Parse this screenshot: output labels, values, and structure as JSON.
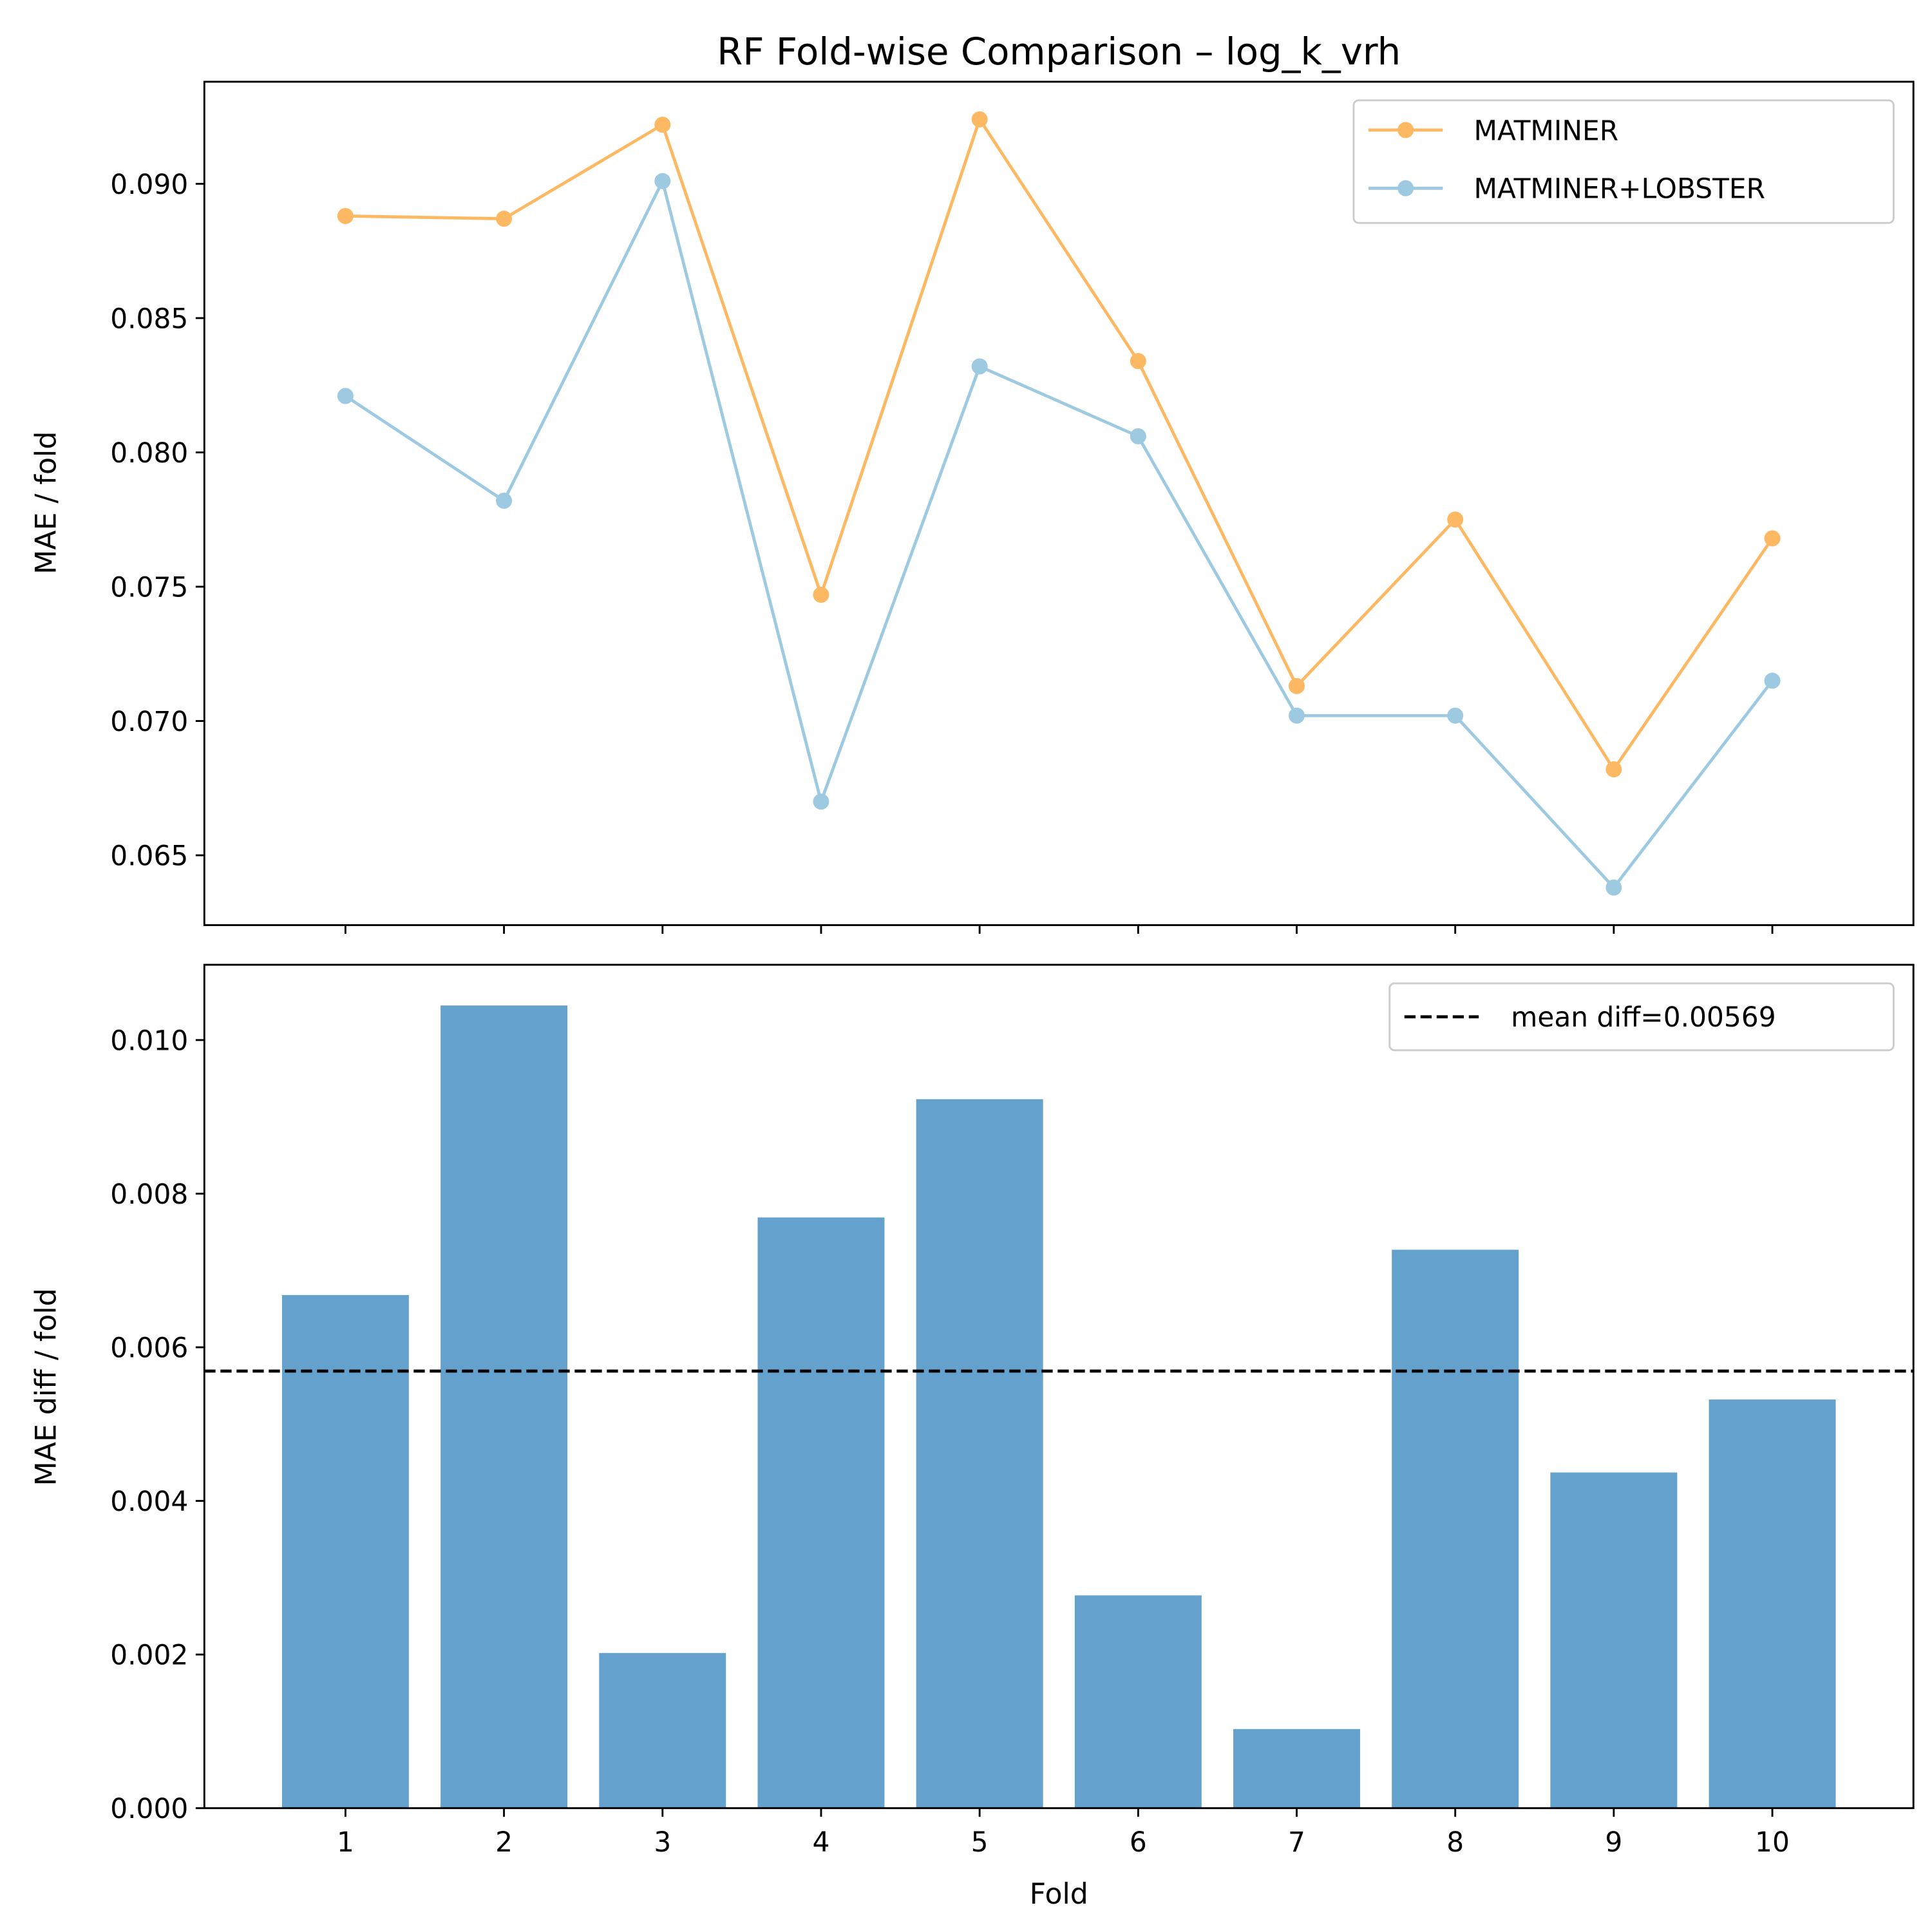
{
  "chart_data": [
    {
      "type": "line",
      "title": "RF Fold-wise Comparison – log_k_vrh",
      "xlabel": "",
      "ylabel": "MAE / fold",
      "x": [
        1,
        2,
        3,
        4,
        5,
        6,
        7,
        8,
        9,
        10
      ],
      "xlim": [
        0.11,
        10.89
      ],
      "ylim": [
        0.0624,
        0.0938
      ],
      "yticks": [
        0.065,
        0.07,
        0.075,
        0.08,
        0.085,
        0.09
      ],
      "ytick_labels": [
        "0.065",
        "0.070",
        "0.075",
        "0.080",
        "0.085",
        "0.090"
      ],
      "grid": false,
      "legend": "top-right",
      "series": [
        {
          "name": "MATMINER",
          "color": "#fdb863",
          "values": [
            0.0888,
            0.0887,
            0.0922,
            0.0747,
            0.0924,
            0.0834,
            0.0713,
            0.0775,
            0.0682,
            0.0768
          ]
        },
        {
          "name": "MATMINER+LOBSTER",
          "color": "#9ecae1",
          "values": [
            0.0821,
            0.0782,
            0.0901,
            0.067,
            0.0832,
            0.0806,
            0.0702,
            0.0702,
            0.0638,
            0.0715
          ]
        }
      ]
    },
    {
      "type": "bar",
      "xlabel": "Fold",
      "ylabel": "MAE diff / fold",
      "categories": [
        "1",
        "2",
        "3",
        "4",
        "5",
        "6",
        "7",
        "8",
        "9",
        "10"
      ],
      "values": [
        0.00668,
        0.01045,
        0.00202,
        0.00769,
        0.00923,
        0.00277,
        0.00103,
        0.00727,
        0.00437,
        0.00532
      ],
      "color": "#4a90c4",
      "xlim": [
        0.11,
        10.89
      ],
      "ylim": [
        0,
        0.01098
      ],
      "yticks": [
        0,
        0.002,
        0.004,
        0.006,
        0.008,
        0.01
      ],
      "ytick_labels": [
        "0.000",
        "0.002",
        "0.004",
        "0.006",
        "0.008",
        "0.010"
      ],
      "grid": false,
      "legend": "top-right",
      "mean_line": {
        "value": 0.00569,
        "label": "mean diff=0.00569",
        "color": "#000000",
        "style": "dashed"
      }
    }
  ]
}
